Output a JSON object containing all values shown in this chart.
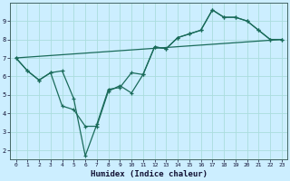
{
  "xlabel": "Humidex (Indice chaleur)",
  "bg_color": "#cceeff",
  "grid_color": "#aadddd",
  "line_color": "#1a6b5a",
  "xlim": [
    -0.5,
    23.5
  ],
  "ylim": [
    1.5,
    10.0
  ],
  "xticks": [
    0,
    1,
    2,
    3,
    4,
    5,
    6,
    7,
    8,
    9,
    10,
    11,
    12,
    13,
    14,
    15,
    16,
    17,
    18,
    19,
    20,
    21,
    22,
    23
  ],
  "yticks": [
    2,
    3,
    4,
    5,
    6,
    7,
    8,
    9
  ],
  "line1_x": [
    0,
    1,
    2,
    3,
    4,
    5,
    6,
    7,
    8,
    9,
    10,
    11,
    12,
    13,
    14,
    15,
    16,
    17,
    18,
    19,
    20,
    21,
    22,
    23
  ],
  "line1_y": [
    7.0,
    6.3,
    5.8,
    6.2,
    6.3,
    4.8,
    1.7,
    3.4,
    5.3,
    5.4,
    6.2,
    6.1,
    7.6,
    7.5,
    8.1,
    8.3,
    8.5,
    9.6,
    9.2,
    9.2,
    9.0,
    8.5,
    8.0,
    8.0
  ],
  "line2_x": [
    0,
    1,
    2,
    3,
    4,
    5,
    6,
    7,
    8,
    9,
    10,
    11,
    12,
    13,
    14,
    15,
    16,
    17,
    18,
    19,
    20,
    21,
    22,
    23
  ],
  "line2_y": [
    7.0,
    6.3,
    5.8,
    6.2,
    4.4,
    4.2,
    3.3,
    3.3,
    5.2,
    5.5,
    5.1,
    6.1,
    7.6,
    7.5,
    8.1,
    8.3,
    8.5,
    9.6,
    9.2,
    9.2,
    9.0,
    8.5,
    8.0,
    8.0
  ],
  "line3_x": [
    0,
    23
  ],
  "line3_y": [
    7.0,
    8.0
  ]
}
